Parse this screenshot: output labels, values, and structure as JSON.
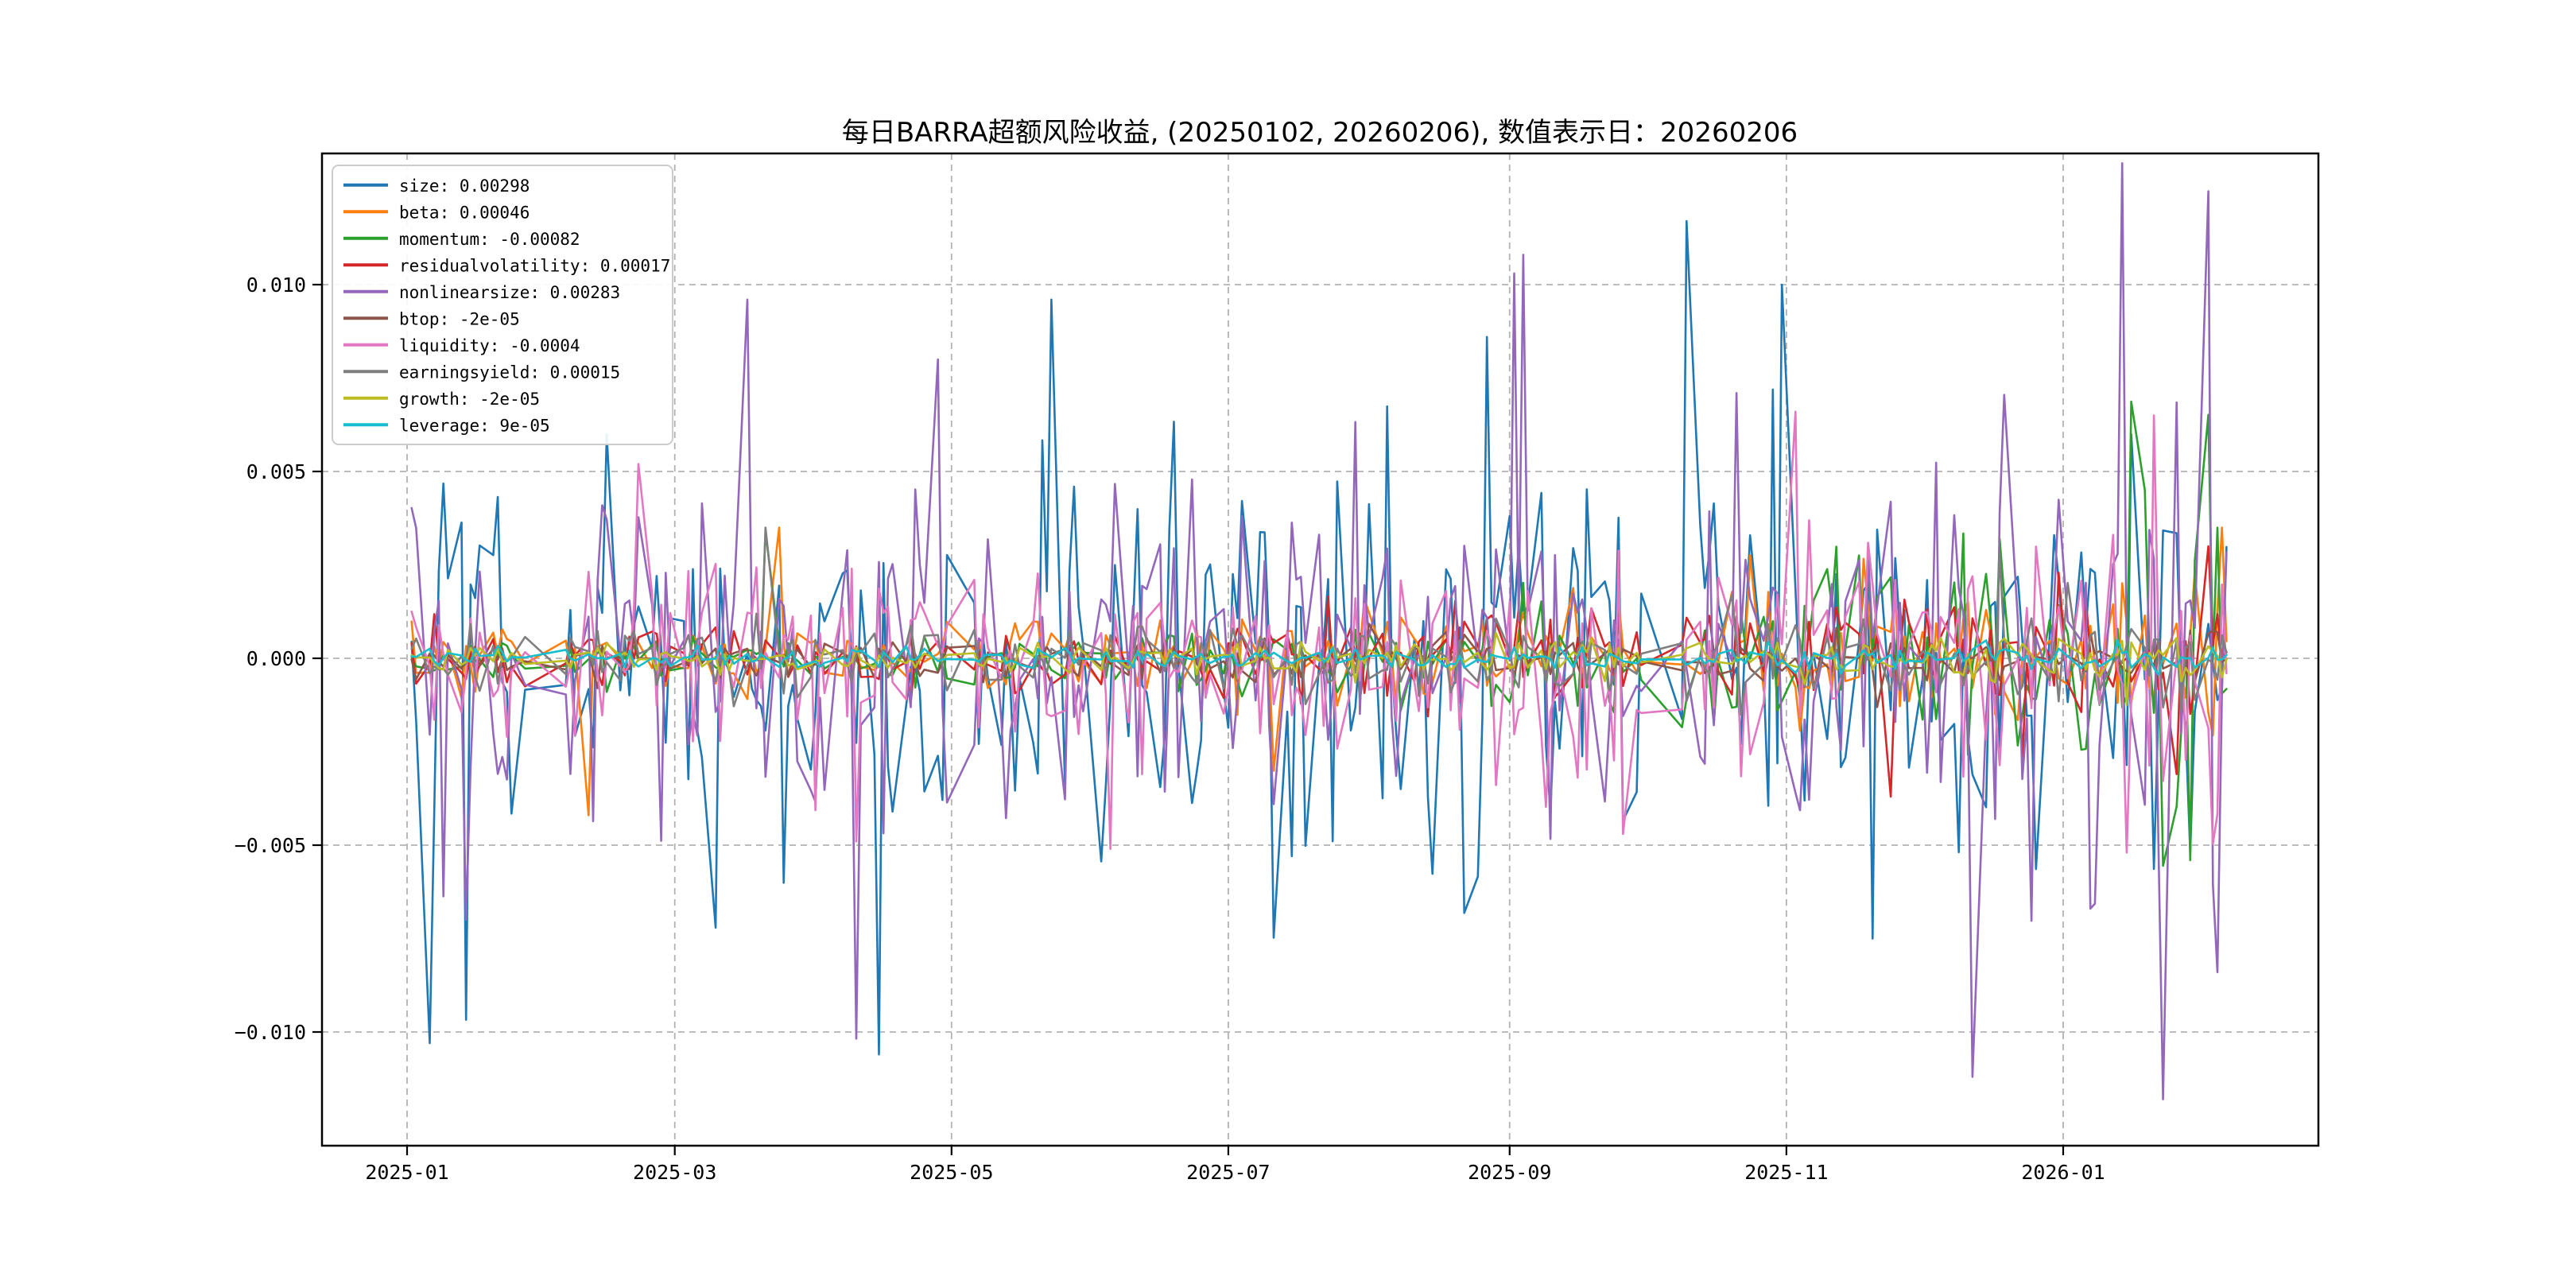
{
  "page": {
    "background_color": "#ffffff"
  },
  "chart_data": {
    "type": "line",
    "title": "每日BARRA超额风险收益, (20250102, 20260206),  数值表示日：20260206",
    "value_display_date": "20260206",
    "x_axis": {
      "tick_labels": [
        "2025-01",
        "2025-03",
        "2025-05",
        "2025-07",
        "2025-09",
        "2025-11",
        "2026-01"
      ],
      "start_date": "2025-01-02",
      "end_date": "2026-02-06",
      "sampling": "weekday trading days",
      "holiday_gaps": [
        [
          "2025-01-28",
          "2025-02-04"
        ],
        [
          "2025-04-04",
          "2025-04-04"
        ],
        [
          "2025-05-01",
          "2025-05-05"
        ],
        [
          "2025-06-02",
          "2025-06-02"
        ],
        [
          "2025-10-01",
          "2025-10-08"
        ],
        [
          "2026-01-01",
          "2026-01-01"
        ]
      ]
    },
    "y_axis": {
      "tick_labels": [
        "0.010",
        "0.005",
        "0.000",
        "−0.005",
        "−0.010"
      ],
      "tick_values": [
        0.01,
        0.005,
        0.0,
        -0.005,
        -0.01
      ],
      "range": [
        -0.01304,
        0.01351
      ]
    },
    "grid": {
      "visible": true,
      "line_style": "dashed",
      "color": "#b2b2b2"
    },
    "legend": {
      "position": "upper-left"
    },
    "series": [
      {
        "name": "size",
        "label": "size: 0.00298",
        "final_value": 0.00298,
        "color": "#1f77b4",
        "sigma": 0.0024,
        "ramp": 0.15,
        "ramp_pow": 2,
        "spike_prob": 0.06,
        "spike_mult": 1.9,
        "seed": 101,
        "anchors": [
          [
            "2025-01-06",
            -0.0103
          ],
          [
            "2025-02-14",
            0.006
          ],
          [
            "2025-04-15",
            -0.0106
          ],
          [
            "2025-05-23",
            0.0096
          ],
          [
            "2025-08-27",
            0.0086
          ],
          [
            "2025-10-10",
            0.0117
          ],
          [
            "2025-10-31",
            0.01
          ],
          [
            "2025-11-20",
            -0.0075
          ],
          [
            "2026-01-16",
            0.006
          ],
          [
            "2026-01-29",
            -0.0052
          ]
        ]
      },
      {
        "name": "beta",
        "label": "beta: 0.00046",
        "final_value": 0.00046,
        "color": "#ff7f0e",
        "sigma": 0.0005,
        "ramp": 1.5,
        "ramp_pow": 2,
        "spike_prob": 0.02,
        "spike_mult": 3.0,
        "seed": 202,
        "anchors": [
          [
            "2025-02-10",
            -0.0042
          ],
          [
            "2025-03-24",
            0.0035
          ],
          [
            "2026-02-05",
            0.0035
          ]
        ]
      },
      {
        "name": "momentum",
        "label": "momentum: -0.00082",
        "final_value": -0.00082,
        "color": "#2ca02c",
        "sigma": 0.0003,
        "ramp": 8,
        "ramp_pow": 3,
        "spike_prob": 0.02,
        "spike_mult": 2.0,
        "seed": 303,
        "anchors": [
          [
            "2025-03-21",
            0.0034
          ],
          [
            "2026-01-19",
            0.0045
          ],
          [
            "2026-01-29",
            -0.0054
          ],
          [
            "2026-02-04",
            0.0035
          ]
        ]
      },
      {
        "name": "residualvolatility",
        "label": "residualvolatility: 0.00017",
        "final_value": 0.00017,
        "color": "#d62728",
        "sigma": 0.00035,
        "ramp": 2.2,
        "ramp_pow": 2,
        "spike_prob": 0.02,
        "spike_mult": 2.2,
        "seed": 404,
        "anchors": [
          [
            "2026-01-26",
            -0.0031
          ],
          [
            "2026-02-02",
            0.003
          ]
        ]
      },
      {
        "name": "nonlinearsize",
        "label": "nonlinearsize: 0.00283",
        "final_value": 0.00283,
        "color": "#9467bd",
        "sigma": 0.0023,
        "ramp": 0.35,
        "ramp_pow": 2,
        "spike_prob": 0.06,
        "spike_mult": 2.0,
        "seed": 505,
        "anchors": [
          [
            "2025-01-14",
            -0.007
          ],
          [
            "2025-03-17",
            0.0096
          ],
          [
            "2025-04-28",
            0.008
          ],
          [
            "2025-09-02",
            0.0103
          ],
          [
            "2025-09-04",
            0.0108
          ],
          [
            "2025-10-21",
            0.0071
          ],
          [
            "2025-12-12",
            -0.0112
          ],
          [
            "2026-01-07",
            -0.0067
          ],
          [
            "2026-01-23",
            -0.0118
          ],
          [
            "2026-02-02",
            0.0125
          ],
          [
            "2026-02-04",
            -0.0084
          ]
        ]
      },
      {
        "name": "btop",
        "label": "btop: -2e-05",
        "final_value": -2e-05,
        "color": "#8c564b",
        "sigma": 0.00026,
        "ramp": 0.4,
        "ramp_pow": 2,
        "spike_prob": 0.01,
        "spike_mult": 2.0,
        "seed": 606,
        "anchors": []
      },
      {
        "name": "liquidity",
        "label": "liquidity: -0.0004",
        "final_value": -0.0004,
        "color": "#e377c2",
        "sigma": 0.0012,
        "ramp": 0.5,
        "ramp_pow": 2,
        "spike_prob": 0.05,
        "spike_mult": 1.8,
        "seed": 707,
        "anchors": [
          [
            "2025-02-21",
            0.0052
          ],
          [
            "2025-04-10",
            -0.0049
          ],
          [
            "2025-06-05",
            -0.0051
          ],
          [
            "2025-11-03",
            0.0066
          ],
          [
            "2026-01-15",
            -0.0052
          ],
          [
            "2026-01-21",
            0.0065
          ]
        ]
      },
      {
        "name": "earningsyield",
        "label": "earningsyield: 0.00015",
        "final_value": 0.00015,
        "color": "#7f7f7f",
        "sigma": 0.0004,
        "ramp": 0.8,
        "ramp_pow": 2,
        "spike_prob": 0.02,
        "spike_mult": 2.5,
        "seed": 808,
        "anchors": [
          [
            "2025-03-21",
            0.0035
          ],
          [
            "2025-12-18",
            0.0028
          ]
        ]
      },
      {
        "name": "growth",
        "label": "growth: -2e-05",
        "final_value": -2e-05,
        "color": "#bcbd22",
        "sigma": 0.00018,
        "ramp": 1.2,
        "ramp_pow": 2,
        "spike_prob": 0.02,
        "spike_mult": 2.0,
        "seed": 909,
        "anchors": []
      },
      {
        "name": "leverage",
        "label": "leverage: 9e-05",
        "final_value": 9e-05,
        "color": "#17becf",
        "sigma": 0.00012,
        "ramp": 0.5,
        "ramp_pow": 2,
        "spike_prob": 0.01,
        "spike_mult": 2.0,
        "seed": 1010,
        "anchors": []
      }
    ]
  }
}
